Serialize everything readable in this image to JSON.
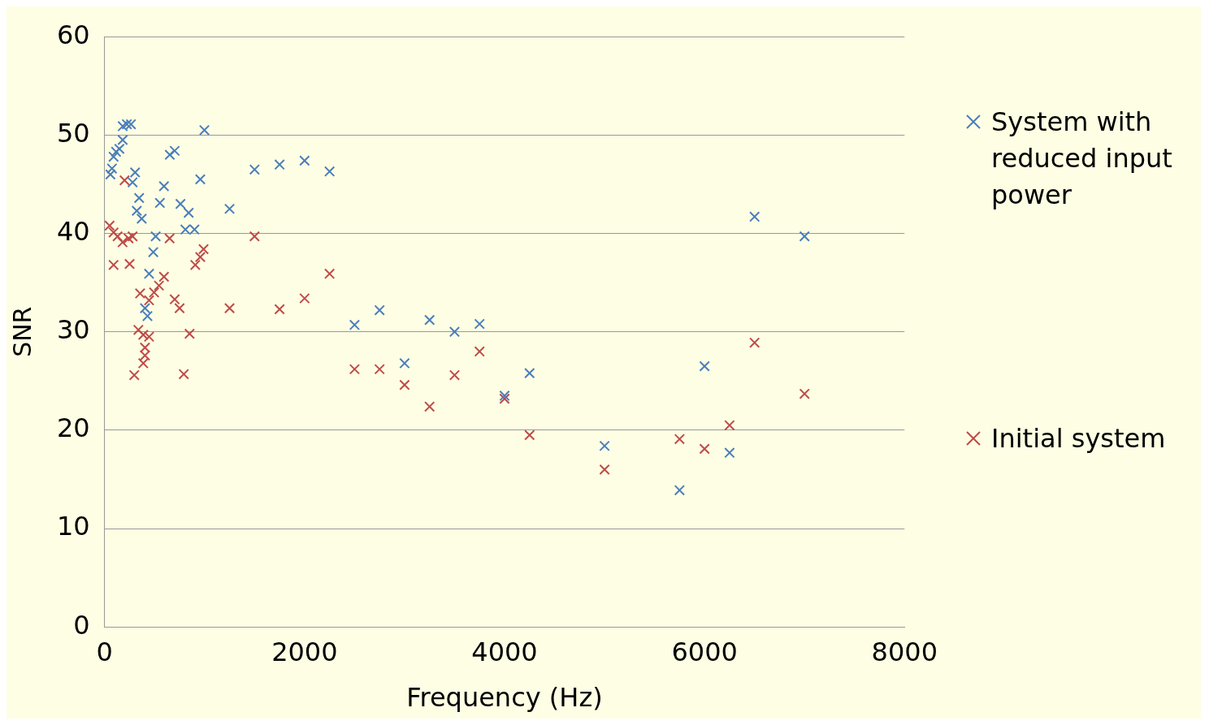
{
  "chart_data": {
    "type": "scatter",
    "xlabel": "Frequency (Hz)",
    "ylabel": "SNR",
    "xlim": [
      0,
      8000
    ],
    "xticks": [
      0,
      2000,
      4000,
      6000,
      8000
    ],
    "ylim": [
      0,
      60
    ],
    "yticks": [
      0,
      10,
      20,
      30,
      40,
      50,
      60
    ],
    "grid": "y",
    "legend": "right",
    "marker": "cross",
    "series": [
      {
        "name": "System with reduced input power",
        "color": "#4a7ebb",
        "x": [
          58,
          74,
          90,
          115,
          148,
          181,
          181,
          223,
          264,
          305,
          280,
          346,
          322,
          371,
          511,
          487,
          445,
          404,
          429,
          553,
          594,
          652,
          701,
          759,
          841,
          808,
          899,
          957,
          998,
          1250,
          1500,
          1750,
          2000,
          2250,
          2500,
          2750,
          3000,
          3250,
          3500,
          3750,
          4000,
          4250,
          5000,
          5750,
          6000,
          6250,
          6500,
          7000
        ],
        "values": [
          46.0,
          46.6,
          47.8,
          48.3,
          48.6,
          49.5,
          50.9,
          51.1,
          51.1,
          46.2,
          45.2,
          43.6,
          42.3,
          41.5,
          39.7,
          38.1,
          35.9,
          32.4,
          31.6,
          43.1,
          44.8,
          48.0,
          48.4,
          43.0,
          42.1,
          40.4,
          40.4,
          45.5,
          50.5,
          42.5,
          46.5,
          47.0,
          47.4,
          46.3,
          30.7,
          32.2,
          26.8,
          31.2,
          30.0,
          30.8,
          23.5,
          25.8,
          18.4,
          13.9,
          26.5,
          17.7,
          41.7,
          39.7
        ]
      },
      {
        "name": "Initial system",
        "color": "#be4b48",
        "x": [
          50,
          90,
          130,
          180,
          240,
          280,
          90,
          250,
          200,
          650,
          1500,
          990,
          957,
          907,
          594,
          544,
          495,
          445,
          355,
          701,
          750,
          338,
          387,
          445,
          850,
          404,
          404,
          387,
          297,
          792,
          1250,
          1750,
          2000,
          2250,
          2500,
          2750,
          3000,
          3250,
          3500,
          3750,
          4000,
          4250,
          5000,
          5750,
          6000,
          6250,
          6500,
          7000
        ],
        "values": [
          40.8,
          40.1,
          39.7,
          39.1,
          39.5,
          39.7,
          36.8,
          36.9,
          45.4,
          39.5,
          39.7,
          38.4,
          37.6,
          36.8,
          35.6,
          34.7,
          34.0,
          33.2,
          33.9,
          33.3,
          32.4,
          30.2,
          29.7,
          29.5,
          29.8,
          28.4,
          27.6,
          26.8,
          25.6,
          25.7,
          32.4,
          32.3,
          33.4,
          35.9,
          26.2,
          26.2,
          24.6,
          22.4,
          25.6,
          28.0,
          23.2,
          19.5,
          16.0,
          19.1,
          18.1,
          20.5,
          28.9,
          23.7
        ]
      }
    ]
  }
}
